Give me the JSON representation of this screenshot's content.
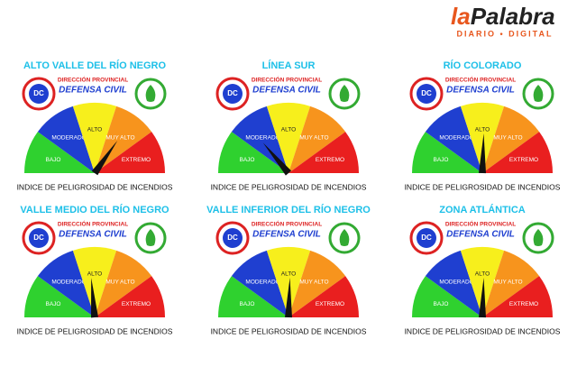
{
  "header": {
    "brand_a": "la",
    "brand_b": "Palabra",
    "tagline": "DIARIO • DIGITAL"
  },
  "agency": {
    "logo": "DC",
    "line1": "DIRECCIÓN PROVINCIAL",
    "line2": "DEFENSA CIVIL"
  },
  "levels": [
    "BAJO",
    "MODERADO",
    "ALTO",
    "MUY ALTO",
    "EXTREMO"
  ],
  "caption": "INDICE DE PELIGROSIDAD DE INCENDIOS",
  "panels": [
    {
      "title": "ALTO VALLE DEL RÍO NEGRO"
    },
    {
      "title": "LÍNEA SUR"
    },
    {
      "title": "RÍO COLORADO"
    },
    {
      "title": "VALLE MEDIO DEL RÍO NEGRO"
    },
    {
      "title": "VALLE INFERIOR DEL RÍO NEGRO"
    },
    {
      "title": "ZONA ATLÁNTICA"
    }
  ]
}
